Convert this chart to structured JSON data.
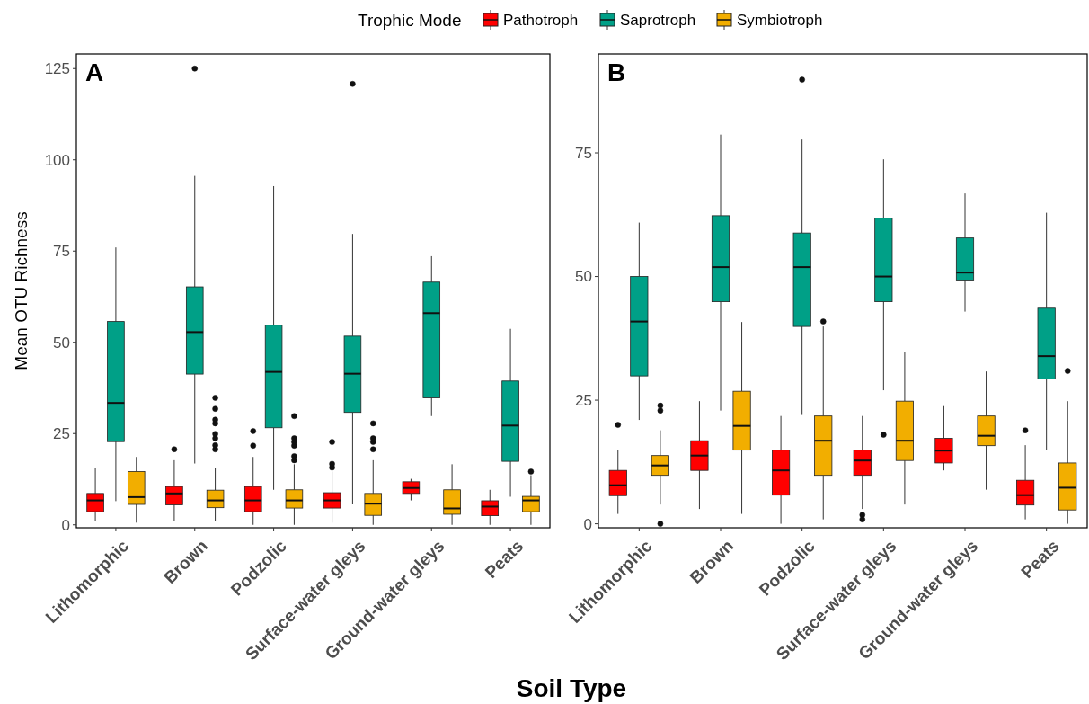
{
  "chart_data": [
    {
      "type": "box",
      "title": "A",
      "xlabel": "Soil Type",
      "ylabel": "Mean OTU Richness",
      "legend_title": "Trophic Mode",
      "legend": "top",
      "categories": [
        "Lithomorphic",
        "Brown",
        "Podzolic",
        "Surface-water gleys",
        "Ground-water gleys",
        "Peats"
      ],
      "ylim": [
        -0.8,
        129
      ],
      "yticks": [
        0,
        25,
        50,
        75,
        100,
        125
      ],
      "grid": false,
      "series": [
        {
          "name": "Pathotroph",
          "color": "#ff0000",
          "boxes": [
            {
              "low": 1,
              "q1": 3.6,
              "median": 6.7,
              "q3": 8.6,
              "high": 15.6
            },
            {
              "low": 1,
              "q1": 5.5,
              "median": 8.6,
              "q3": 10.5,
              "high": 17.7,
              "outliers": [
                20.7
              ]
            },
            {
              "low": 0,
              "q1": 3.6,
              "median": 6.7,
              "q3": 10.5,
              "high": 18.6,
              "outliers": [
                21.7,
                25.7
              ]
            },
            {
              "low": 0.6,
              "q1": 4.6,
              "median": 6.7,
              "q3": 8.8,
              "high": 14.6,
              "outliers": [
                15.7,
                16.7,
                22.7
              ]
            },
            {
              "low": 6.7,
              "q1": 8.6,
              "median": 10.1,
              "q3": 11.8,
              "high": 12.6
            },
            {
              "low": 0,
              "q1": 2.5,
              "median": 5,
              "q3": 6.6,
              "high": 9.6
            }
          ]
        },
        {
          "name": "Saprotroph",
          "color": "#00a087",
          "boxes": [
            {
              "low": 6.5,
              "q1": 22.8,
              "median": 33.4,
              "q3": 55.7,
              "high": 76
            },
            {
              "low": 16.8,
              "q1": 41.3,
              "median": 52.8,
              "q3": 65.2,
              "high": 95.6,
              "outliers": [
                125
              ]
            },
            {
              "low": 9.6,
              "q1": 26.6,
              "median": 41.9,
              "q3": 54.7,
              "high": 92.8
            },
            {
              "low": 5.6,
              "q1": 30.8,
              "median": 41.4,
              "q3": 51.7,
              "high": 79.7,
              "outliers": [
                120.8
              ]
            },
            {
              "low": 29.8,
              "q1": 34.8,
              "median": 58,
              "q3": 66.5,
              "high": 73.6
            },
            {
              "low": 7.7,
              "q1": 17.4,
              "median": 27.2,
              "q3": 39.4,
              "high": 53.7
            }
          ]
        },
        {
          "name": "Symbiotroph",
          "color": "#f2ae00",
          "boxes": [
            {
              "low": 0.6,
              "q1": 5.6,
              "median": 7.6,
              "q3": 14.6,
              "high": 18.6
            },
            {
              "low": 1,
              "q1": 4.7,
              "median": 6.7,
              "q3": 9.5,
              "high": 15.6,
              "outliers": [
                20.7,
                21.8,
                23.7,
                24.9,
                27.8,
                28.8,
                31.8,
                34.8
              ]
            },
            {
              "low": 0,
              "q1": 4.6,
              "median": 6.7,
              "q3": 9.6,
              "high": 16.6,
              "outliers": [
                17.7,
                18.8,
                21.7,
                22.7,
                23.7,
                29.8
              ]
            },
            {
              "low": 0,
              "q1": 2.6,
              "median": 5.8,
              "q3": 8.6,
              "high": 17.7,
              "outliers": [
                20.7,
                22.7,
                23.7,
                27.8
              ]
            },
            {
              "low": 0,
              "q1": 2.9,
              "median": 4.5,
              "q3": 9.6,
              "high": 16.6
            },
            {
              "low": 0,
              "q1": 3.6,
              "median": 6.7,
              "q3": 7.8,
              "high": 13.6,
              "outliers": [
                14.6
              ]
            }
          ]
        }
      ]
    },
    {
      "type": "box",
      "title": "B",
      "categories": [
        "Lithomorphic",
        "Brown",
        "Podzolic",
        "Surface-water gleys",
        "Ground-water gleys",
        "Peats"
      ],
      "ylim": [
        -0.8,
        95
      ],
      "yticks": [
        0,
        25,
        50,
        75
      ],
      "grid": false,
      "series": [
        {
          "color": "#ff0000",
          "boxes": [
            {
              "low": 2,
              "q1": 5.7,
              "median": 7.8,
              "q3": 10.8,
              "high": 14.9,
              "outliers": [
                20
              ]
            },
            {
              "low": 3,
              "q1": 10.8,
              "median": 13.8,
              "q3": 16.8,
              "high": 24.8
            },
            {
              "low": 0,
              "q1": 5.8,
              "median": 10.8,
              "q3": 14.9,
              "high": 21.8
            },
            {
              "low": 3,
              "q1": 9.8,
              "median": 12.8,
              "q3": 14.9,
              "high": 21.8,
              "outliers": [
                0.9,
                1.8
              ]
            },
            {
              "low": 10.8,
              "q1": 12.3,
              "median": 14.8,
              "q3": 17.3,
              "high": 23.8
            },
            {
              "low": 0.9,
              "q1": 3.8,
              "median": 5.8,
              "q3": 8.8,
              "high": 15.9,
              "outliers": [
                18.9
              ]
            }
          ]
        },
        {
          "color": "#00a087",
          "boxes": [
            {
              "low": 21,
              "q1": 29.9,
              "median": 40.9,
              "q3": 50,
              "high": 60.9
            },
            {
              "low": 22.9,
              "q1": 44.9,
              "median": 51.9,
              "q3": 62.3,
              "high": 78.7
            },
            {
              "low": 22,
              "q1": 39.9,
              "median": 51.9,
              "q3": 58.8,
              "high": 77.7,
              "outliers": [
                89.8
              ]
            },
            {
              "low": 27,
              "q1": 44.9,
              "median": 50,
              "q3": 61.8,
              "high": 73.7,
              "outliers": [
                18
              ]
            },
            {
              "low": 42.9,
              "q1": 49.3,
              "median": 50.8,
              "q3": 57.8,
              "high": 66.8
            },
            {
              "low": 14.9,
              "q1": 29.3,
              "median": 33.9,
              "q3": 43.6,
              "high": 62.9
            }
          ]
        },
        {
          "color": "#f2ae00",
          "boxes": [
            {
              "low": 3.9,
              "q1": 9.8,
              "median": 11.8,
              "q3": 13.8,
              "high": 18.9,
              "outliers": [
                0,
                22.9,
                23.9
              ]
            },
            {
              "low": 2,
              "q1": 14.9,
              "median": 19.8,
              "q3": 26.8,
              "high": 40.8
            },
            {
              "low": 0.9,
              "q1": 9.8,
              "median": 16.8,
              "q3": 21.8,
              "high": 39.9,
              "outliers": [
                40.9
              ]
            },
            {
              "low": 3.9,
              "q1": 12.8,
              "median": 16.8,
              "q3": 24.8,
              "high": 34.8
            },
            {
              "low": 6.9,
              "q1": 15.8,
              "median": 17.8,
              "q3": 21.8,
              "high": 30.8
            },
            {
              "low": 0,
              "q1": 2.8,
              "median": 7.3,
              "q3": 12.3,
              "high": 24.8,
              "outliers": [
                30.9
              ]
            }
          ]
        }
      ]
    }
  ]
}
